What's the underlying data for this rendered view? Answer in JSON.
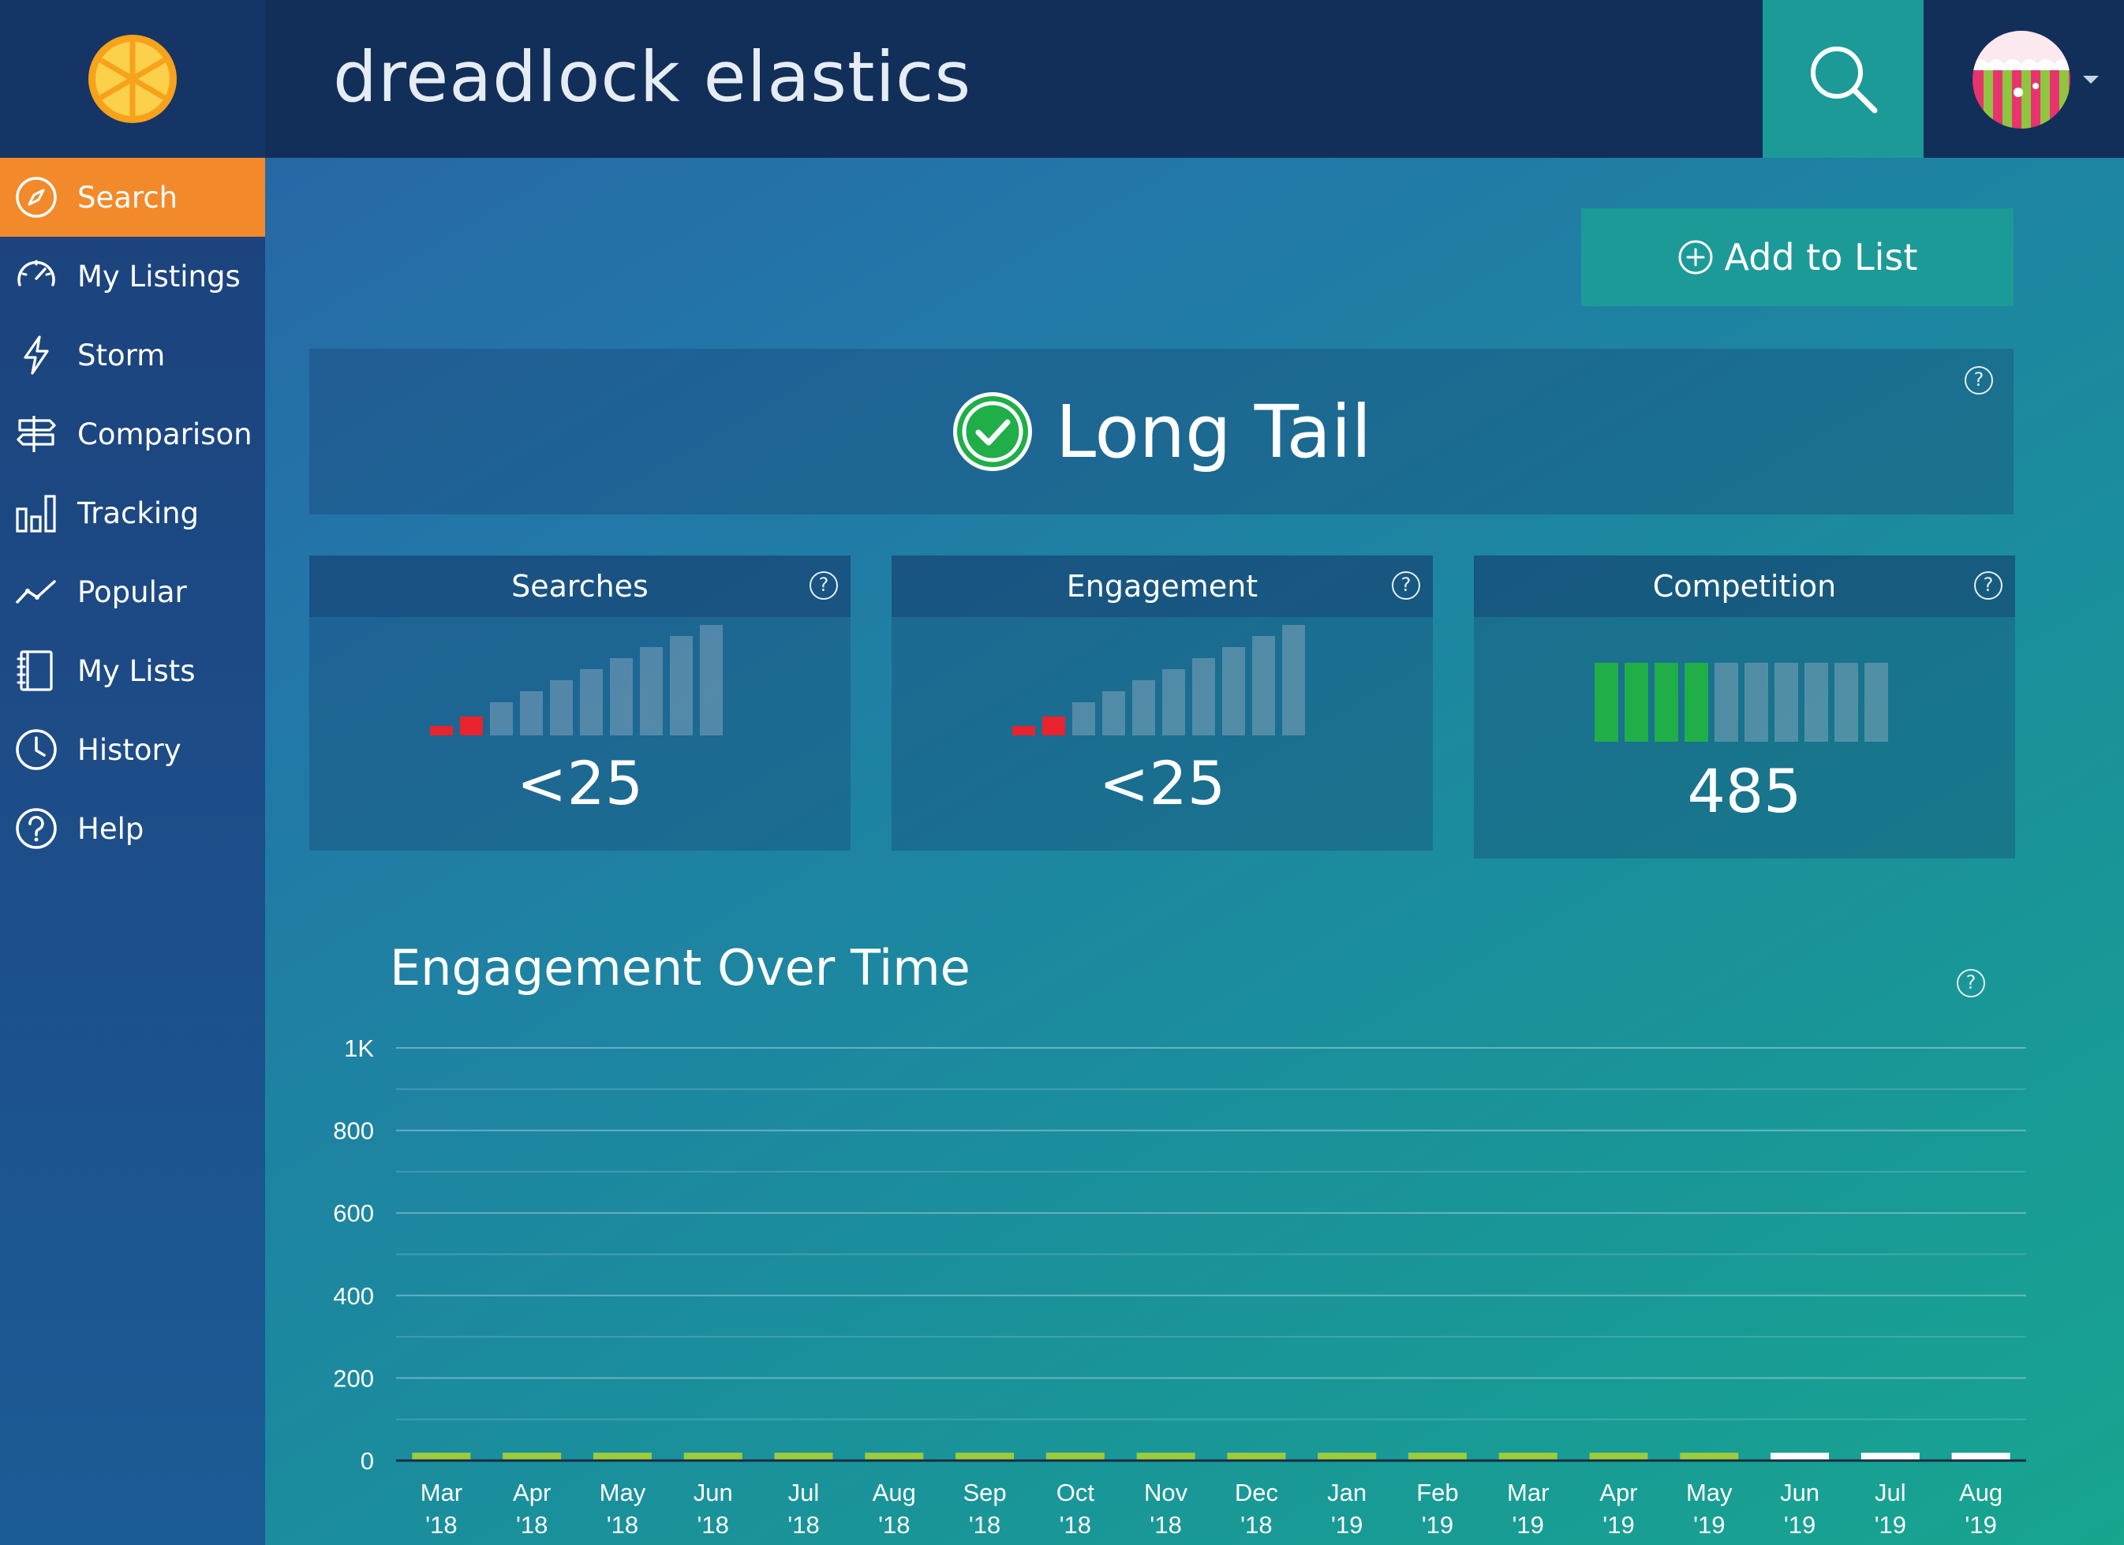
{
  "app": {
    "logo_icon": "orange-slice-icon"
  },
  "topbar": {
    "title": "dreadlock elastics",
    "search_icon": "magnifier-icon",
    "avatar_icon": "user-avatar"
  },
  "sidebar": {
    "items": [
      {
        "label": "Search",
        "icon": "compass-icon",
        "active": true
      },
      {
        "label": "My Listings",
        "icon": "speedometer-icon"
      },
      {
        "label": "Storm",
        "icon": "lightning-icon"
      },
      {
        "label": "Comparison",
        "icon": "signpost-icon"
      },
      {
        "label": "Tracking",
        "icon": "bar-chart-icon"
      },
      {
        "label": "Popular",
        "icon": "trend-line-icon"
      },
      {
        "label": "My Lists",
        "icon": "notebook-icon"
      },
      {
        "label": "History",
        "icon": "clock-icon"
      },
      {
        "label": "Help",
        "icon": "question-circle-icon"
      }
    ]
  },
  "actions": {
    "add_to_list": "Add to List"
  },
  "verdict": {
    "label": "Long Tail",
    "status": "good",
    "help": "?"
  },
  "metrics": {
    "searches": {
      "label": "Searches",
      "value": "<25",
      "level": 2,
      "total": 10,
      "help": "?"
    },
    "engagement": {
      "label": "Engagement",
      "value": "<25",
      "level": 2,
      "total": 10,
      "help": "?"
    },
    "competition": {
      "label": "Competition",
      "value": "485",
      "level": 4,
      "total": 10,
      "help": "?"
    }
  },
  "colors": {
    "accent_orange": "#f28a2b",
    "teal": "#1c9a98",
    "low_red": "#e8232d",
    "good_green": "#1fae48",
    "bar_green": "#9ccb3b",
    "bar_white": "#ffffff"
  },
  "chart_data": {
    "type": "bar",
    "title": "Engagement Over Time",
    "help": "?",
    "xlabel": "",
    "ylabel": "",
    "ylim": [
      0,
      1000
    ],
    "yticks": [
      {
        "v": 0,
        "label": "0"
      },
      {
        "v": 200,
        "label": "200"
      },
      {
        "v": 400,
        "label": "400"
      },
      {
        "v": 600,
        "label": "600"
      },
      {
        "v": 800,
        "label": "800"
      },
      {
        "v": 1000,
        "label": "1K"
      }
    ],
    "categories": [
      [
        "Mar",
        "'18"
      ],
      [
        "Apr",
        "'18"
      ],
      [
        "May",
        "'18"
      ],
      [
        "Jun",
        "'18"
      ],
      [
        "Jul",
        "'18"
      ],
      [
        "Aug",
        "'18"
      ],
      [
        "Sep",
        "'18"
      ],
      [
        "Oct",
        "'18"
      ],
      [
        "Nov",
        "'18"
      ],
      [
        "Dec",
        "'18"
      ],
      [
        "Jan",
        "'19"
      ],
      [
        "Feb",
        "'19"
      ],
      [
        "Mar",
        "'19"
      ],
      [
        "Apr",
        "'19"
      ],
      [
        "May",
        "'19"
      ],
      [
        "Jun",
        "'19"
      ],
      [
        "Jul",
        "'19"
      ],
      [
        "Aug",
        "'19"
      ]
    ],
    "values": [
      3,
      3,
      3,
      3,
      3,
      3,
      3,
      3,
      3,
      3,
      3,
      3,
      3,
      3,
      3,
      3,
      3,
      3
    ],
    "bar_color_keys": [
      "green",
      "green",
      "green",
      "green",
      "green",
      "green",
      "green",
      "green",
      "green",
      "green",
      "green",
      "green",
      "green",
      "green",
      "green",
      "white",
      "white",
      "white"
    ],
    "grid": true
  }
}
